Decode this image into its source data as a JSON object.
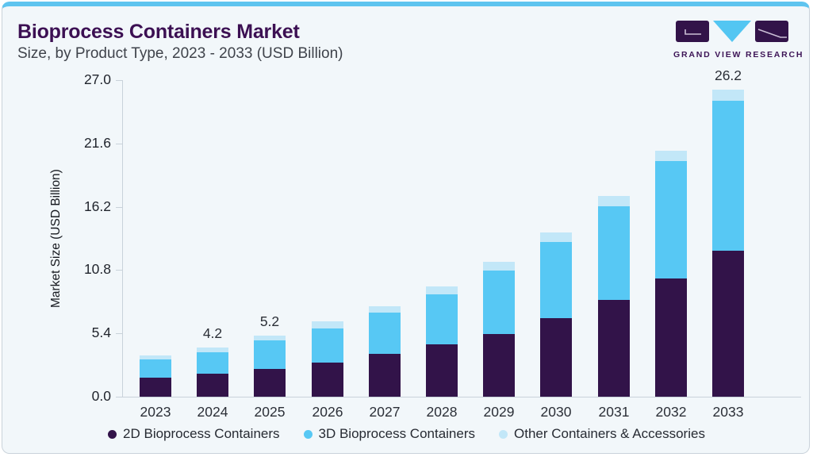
{
  "page": {
    "title": "Bioprocess Containers Market",
    "subtitle": "Size, by Product Type, 2023 - 2033 (USD Billion)"
  },
  "logo": {
    "text": "GRAND VIEW RESEARCH"
  },
  "colors": {
    "accent_strip": "#5ec4ef",
    "card_bg": "#f2f7fa",
    "title": "#3c1053",
    "axis": "#c9d2da",
    "series_2d": "#321349",
    "series_3d": "#57c8f4",
    "series_other": "#c2e7f8"
  },
  "chart_data": {
    "type": "bar",
    "stacked": true,
    "title": "Bioprocess Containers Market",
    "subtitle": "Size, by Product Type, 2023 - 2033 (USD Billion)",
    "xlabel": "",
    "ylabel": "Market Size (USD Billion)",
    "ylim": [
      0,
      27
    ],
    "ytick_labels": [
      "0.0",
      "5.4",
      "10.8",
      "16.2",
      "21.6",
      "27.0"
    ],
    "grid": false,
    "legend_position": "bottom",
    "categories": [
      "2023",
      "2024",
      "2025",
      "2026",
      "2027",
      "2028",
      "2029",
      "2030",
      "2031",
      "2032",
      "2033"
    ],
    "series": [
      {
        "name": "2D Bioprocess Containers",
        "color": "#321349",
        "values": [
          1.6,
          1.95,
          2.4,
          2.93,
          3.63,
          4.47,
          5.37,
          6.68,
          8.23,
          10.1,
          12.43
        ]
      },
      {
        "name": "3D Bioprocess Containers",
        "color": "#57c8f4",
        "values": [
          1.56,
          1.84,
          2.41,
          2.91,
          3.55,
          4.25,
          5.39,
          6.53,
          8.01,
          10.0,
          12.82
        ]
      },
      {
        "name": "Other Containers & Accessories",
        "color": "#c2e7f8",
        "values": [
          0.34,
          0.41,
          0.39,
          0.56,
          0.52,
          0.68,
          0.74,
          0.79,
          0.86,
          0.9,
          0.95
        ]
      }
    ],
    "totals": [
      3.5,
      4.2,
      5.2,
      6.4,
      7.7,
      9.4,
      11.5,
      14.0,
      17.1,
      21.0,
      26.2
    ],
    "bar_labels": [
      "",
      "4.2",
      "5.2",
      "",
      "",
      "",
      "",
      "",
      "",
      "",
      "26.2"
    ]
  }
}
